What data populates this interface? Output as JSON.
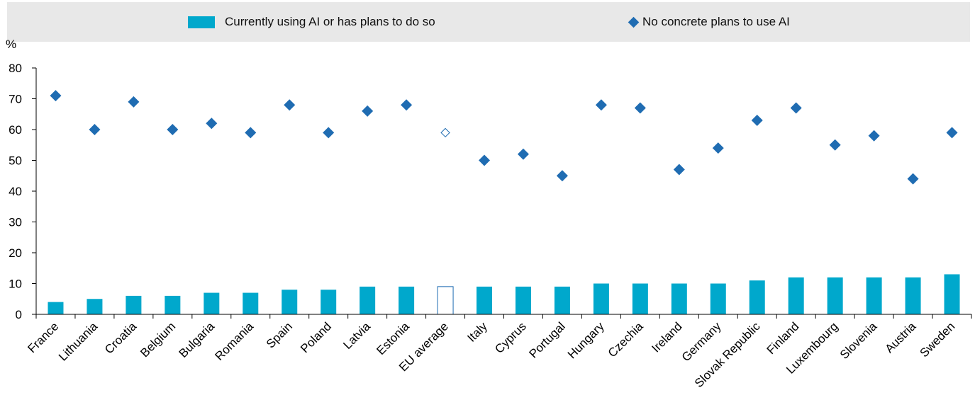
{
  "legend": {
    "bar_label": "Currently using AI or has plans to do so",
    "marker_label": "No concrete plans to use AI"
  },
  "colors": {
    "bar": "#00A8CC",
    "marker": "#1F6CB2",
    "highlight_outline": "#1F6CB2",
    "legend_background": "#e8e8e8"
  },
  "chart_data": {
    "type": "bar",
    "ylabel": "%",
    "ylim": [
      0,
      80
    ],
    "yticks": [
      0,
      10,
      20,
      30,
      40,
      50,
      60,
      70,
      80
    ],
    "grid": false,
    "legend_placement": "top",
    "categories": [
      "France",
      "Lithuania",
      "Croatia",
      "Belgium",
      "Bulgaria",
      "Romania",
      "Spain",
      "Poland",
      "Latvia",
      "Estonia",
      "EU average",
      "Italy",
      "Cyprus",
      "Portugal",
      "Hungary",
      "Czechia",
      "Ireland",
      "Germany",
      "Slovak Republic",
      "Finland",
      "Luxembourg",
      "Slovenia",
      "Austria",
      "Sweden"
    ],
    "highlight_category": "EU average",
    "series": [
      {
        "name": "Currently using AI or has plans to do so",
        "kind": "bar",
        "values": [
          4,
          5,
          6,
          6,
          7,
          7,
          8,
          8,
          9,
          9,
          9,
          9,
          9,
          9,
          10,
          10,
          10,
          10,
          11,
          12,
          12,
          12,
          12,
          13
        ]
      },
      {
        "name": "No concrete plans to use AI",
        "kind": "marker",
        "values": [
          71,
          60,
          69,
          60,
          62,
          59,
          68,
          59,
          66,
          68,
          59,
          50,
          52,
          45,
          68,
          67,
          47,
          54,
          63,
          67,
          55,
          58,
          44,
          59
        ]
      }
    ]
  }
}
